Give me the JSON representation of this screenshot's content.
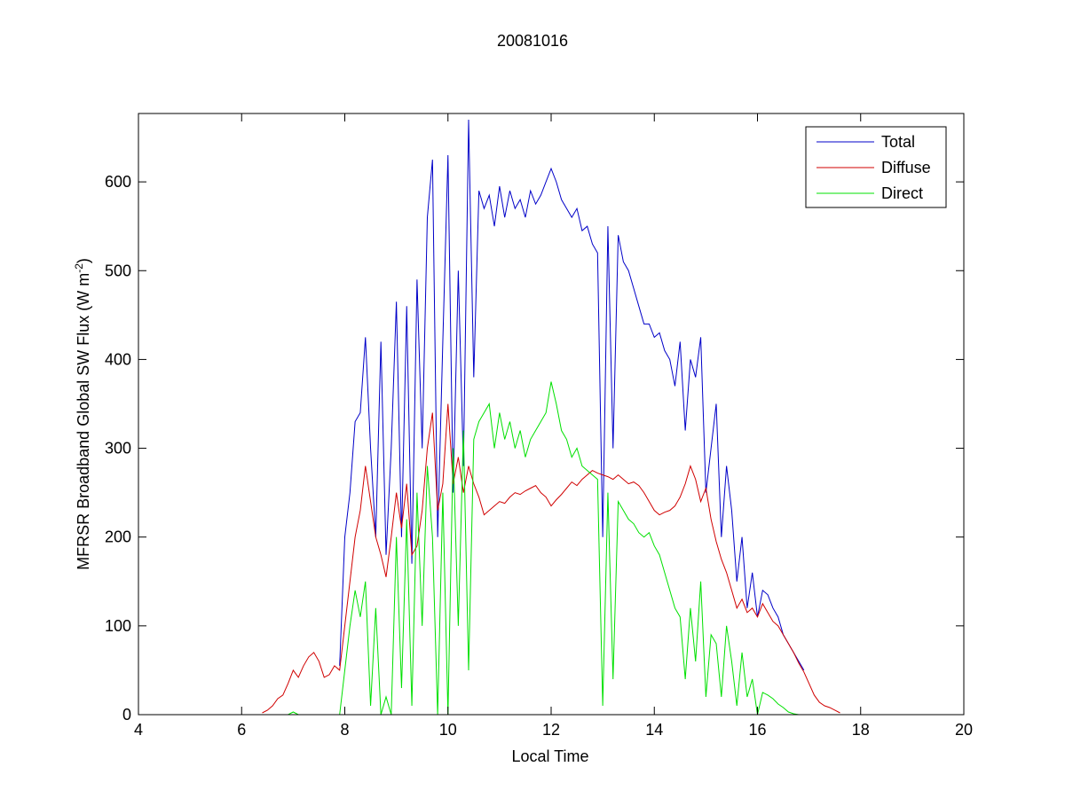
{
  "chart_data": {
    "type": "line",
    "title": "20081016",
    "xlabel": "Local Time",
    "ylabel": [
      "MFRSR Broadband Global SW Flux (W m",
      "-2",
      ")"
    ],
    "xlim": [
      4,
      20
    ],
    "xticks": [
      4,
      6,
      8,
      10,
      12,
      14,
      16,
      18,
      20
    ],
    "ylim": [
      0,
      677
    ],
    "yticks": [
      0,
      100,
      200,
      300,
      400,
      500,
      600
    ],
    "legend": "upper right",
    "series": [
      {
        "name": "Total",
        "color": "#0000c8",
        "x": [
          7.9,
          8.0,
          8.1,
          8.2,
          8.3,
          8.4,
          8.5,
          8.6,
          8.7,
          8.8,
          8.9,
          9.0,
          9.1,
          9.2,
          9.3,
          9.4,
          9.5,
          9.6,
          9.7,
          9.8,
          9.9,
          10.0,
          10.1,
          10.2,
          10.3,
          10.4,
          10.5,
          10.6,
          10.7,
          10.8,
          10.9,
          11.0,
          11.1,
          11.2,
          11.3,
          11.4,
          11.5,
          11.6,
          11.7,
          11.8,
          11.9,
          12.0,
          12.1,
          12.2,
          12.3,
          12.4,
          12.5,
          12.6,
          12.7,
          12.8,
          12.9,
          13.0,
          13.1,
          13.2,
          13.3,
          13.4,
          13.5,
          13.6,
          13.7,
          13.8,
          13.9,
          14.0,
          14.1,
          14.2,
          14.3,
          14.4,
          14.5,
          14.6,
          14.7,
          14.8,
          14.9,
          15.0,
          15.1,
          15.2,
          15.3,
          15.4,
          15.5,
          15.6,
          15.7,
          15.8,
          15.9,
          16.0,
          16.1,
          16.2,
          16.3,
          16.4,
          16.5,
          16.6,
          16.7,
          16.8,
          16.9
        ],
        "values": [
          55,
          200,
          250,
          330,
          340,
          425,
          300,
          200,
          420,
          180,
          300,
          465,
          200,
          460,
          170,
          490,
          300,
          560,
          625,
          200,
          420,
          630,
          250,
          500,
          280,
          670,
          380,
          590,
          570,
          585,
          550,
          595,
          560,
          590,
          570,
          580,
          560,
          590,
          575,
          585,
          600,
          615,
          600,
          580,
          570,
          560,
          570,
          545,
          550,
          530,
          520,
          200,
          550,
          300,
          540,
          510,
          500,
          480,
          460,
          440,
          440,
          425,
          430,
          410,
          400,
          370,
          420,
          320,
          400,
          380,
          425,
          250,
          300,
          350,
          200,
          280,
          230,
          150,
          200,
          120,
          160,
          110,
          140,
          135,
          120,
          110,
          90,
          80,
          70,
          60,
          50
        ]
      },
      {
        "name": "Diffuse",
        "color": "#d00000",
        "x": [
          6.4,
          6.5,
          6.6,
          6.7,
          6.8,
          6.9,
          7.0,
          7.1,
          7.2,
          7.3,
          7.4,
          7.5,
          7.6,
          7.7,
          7.8,
          7.9,
          8.0,
          8.1,
          8.2,
          8.3,
          8.4,
          8.5,
          8.6,
          8.7,
          8.8,
          8.9,
          9.0,
          9.1,
          9.2,
          9.3,
          9.4,
          9.5,
          9.6,
          9.7,
          9.8,
          9.9,
          10.0,
          10.1,
          10.2,
          10.3,
          10.4,
          10.5,
          10.6,
          10.7,
          10.8,
          10.9,
          11.0,
          11.1,
          11.2,
          11.3,
          11.4,
          11.5,
          11.6,
          11.7,
          11.8,
          11.9,
          12.0,
          12.1,
          12.2,
          12.3,
          12.4,
          12.5,
          12.6,
          12.7,
          12.8,
          12.9,
          13.0,
          13.1,
          13.2,
          13.3,
          13.4,
          13.5,
          13.6,
          13.7,
          13.8,
          13.9,
          14.0,
          14.1,
          14.2,
          14.3,
          14.4,
          14.5,
          14.6,
          14.7,
          14.8,
          14.9,
          15.0,
          15.1,
          15.2,
          15.3,
          15.4,
          15.5,
          15.6,
          15.7,
          15.8,
          15.9,
          16.0,
          16.1,
          16.2,
          16.3,
          16.4,
          16.5,
          16.6,
          16.7,
          16.8,
          16.9,
          17.0,
          17.1,
          17.2,
          17.3,
          17.4,
          17.5,
          17.6
        ],
        "values": [
          2,
          5,
          10,
          18,
          22,
          35,
          50,
          42,
          55,
          65,
          70,
          60,
          42,
          45,
          55,
          50,
          100,
          150,
          200,
          230,
          280,
          240,
          200,
          180,
          155,
          200,
          250,
          210,
          260,
          180,
          190,
          230,
          300,
          340,
          230,
          260,
          350,
          260,
          290,
          250,
          280,
          260,
          245,
          225,
          230,
          235,
          240,
          238,
          245,
          250,
          248,
          252,
          255,
          258,
          250,
          245,
          235,
          242,
          248,
          255,
          262,
          258,
          265,
          270,
          275,
          272,
          270,
          268,
          265,
          270,
          265,
          260,
          262,
          258,
          250,
          240,
          230,
          225,
          228,
          230,
          235,
          245,
          260,
          280,
          265,
          240,
          255,
          220,
          195,
          175,
          160,
          140,
          120,
          130,
          115,
          120,
          110,
          125,
          115,
          105,
          100,
          90,
          80,
          70,
          58,
          48,
          35,
          22,
          14,
          10,
          8,
          5,
          2
        ]
      },
      {
        "name": "Direct",
        "color": "#00e000",
        "x": [
          6.4,
          6.5,
          6.6,
          6.7,
          6.8,
          6.9,
          7.0,
          7.1,
          7.2,
          7.3,
          7.4,
          7.5,
          7.6,
          7.7,
          7.8,
          7.9,
          8.0,
          8.1,
          8.2,
          8.3,
          8.4,
          8.5,
          8.6,
          8.7,
          8.8,
          8.9,
          9.0,
          9.1,
          9.2,
          9.3,
          9.4,
          9.5,
          9.6,
          9.7,
          9.8,
          9.9,
          10.0,
          10.1,
          10.2,
          10.3,
          10.4,
          10.5,
          10.6,
          10.7,
          10.8,
          10.9,
          11.0,
          11.1,
          11.2,
          11.3,
          11.4,
          11.5,
          11.6,
          11.7,
          11.8,
          11.9,
          12.0,
          12.1,
          12.2,
          12.3,
          12.4,
          12.5,
          12.6,
          12.7,
          12.8,
          12.9,
          13.0,
          13.1,
          13.2,
          13.3,
          13.4,
          13.5,
          13.6,
          13.7,
          13.8,
          13.9,
          14.0,
          14.1,
          14.2,
          14.3,
          14.4,
          14.5,
          14.6,
          14.7,
          14.8,
          14.9,
          15.0,
          15.1,
          15.2,
          15.3,
          15.4,
          15.5,
          15.6,
          15.7,
          15.8,
          15.9,
          16.0,
          16.1,
          16.2,
          16.3,
          16.4,
          16.5,
          16.6,
          16.7,
          16.8,
          16.9,
          17.0
        ],
        "values": [
          0,
          0,
          0,
          0,
          0,
          0,
          3,
          0,
          0,
          0,
          0,
          0,
          0,
          0,
          0,
          0,
          50,
          100,
          140,
          110,
          150,
          10,
          120,
          0,
          20,
          0,
          200,
          30,
          220,
          10,
          250,
          100,
          280,
          200,
          0,
          250,
          0,
          300,
          100,
          320,
          50,
          310,
          330,
          340,
          350,
          300,
          340,
          310,
          330,
          300,
          320,
          290,
          310,
          320,
          330,
          340,
          375,
          350,
          320,
          310,
          290,
          300,
          280,
          275,
          270,
          265,
          10,
          250,
          40,
          240,
          230,
          220,
          215,
          205,
          200,
          205,
          190,
          180,
          160,
          140,
          120,
          110,
          40,
          120,
          60,
          150,
          20,
          90,
          80,
          20,
          100,
          60,
          10,
          70,
          20,
          40,
          0,
          25,
          22,
          18,
          12,
          8,
          3,
          1,
          0,
          0,
          0
        ]
      }
    ]
  }
}
